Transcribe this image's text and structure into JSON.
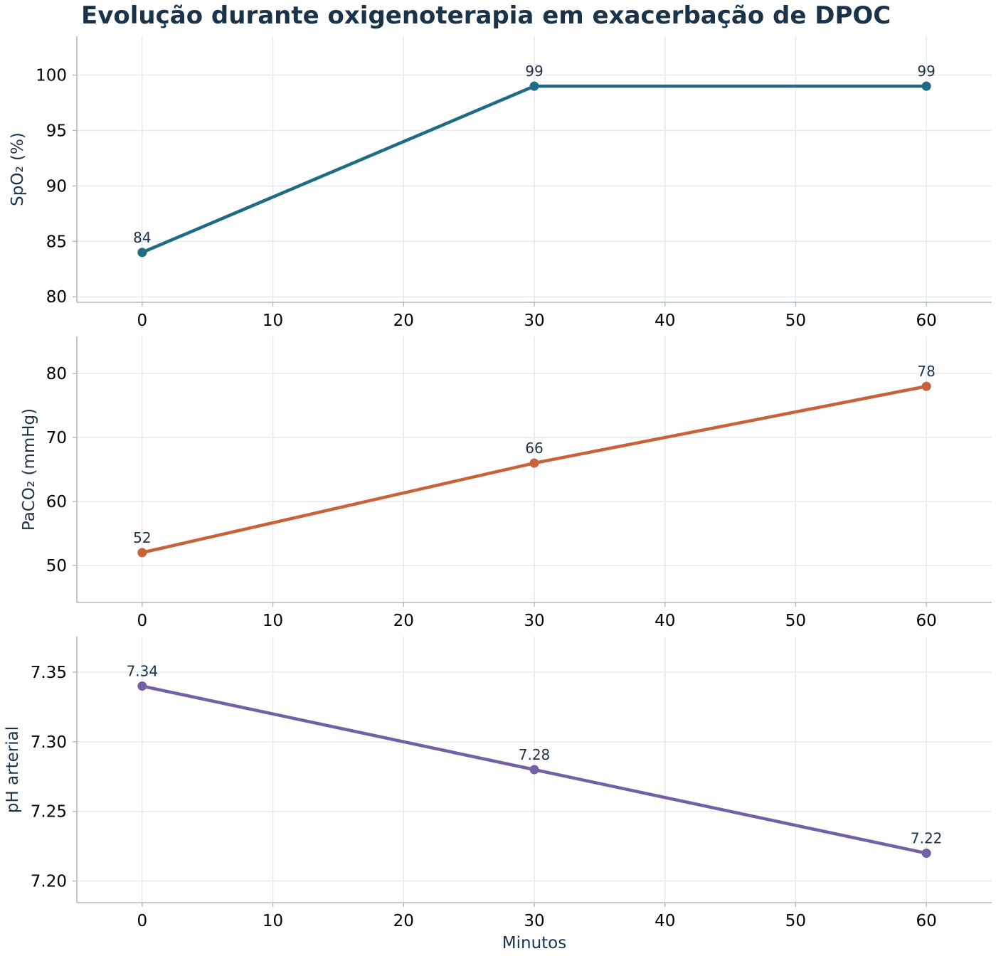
{
  "chart_data": {
    "type": "line",
    "title": "Evolução durante oxigenoterapia em exacerbação de DPOC",
    "xlabel": "Minutos",
    "x": [
      0,
      30,
      60
    ],
    "xlim": [
      -5,
      65
    ],
    "xticks": [
      0,
      10,
      20,
      30,
      40,
      50,
      60
    ],
    "grid": true,
    "legend": "none",
    "colors": {
      "title": "#1b3349",
      "axis_label": "#1b3349",
      "data_label": "#1b3349",
      "grid": "#e6e9ed",
      "spine": "#aebbc6"
    },
    "panels": [
      {
        "ylabel": "SpO₂ (%)",
        "values": [
          84,
          99,
          99
        ],
        "value_labels": [
          "84",
          "99",
          "99"
        ],
        "ylim": [
          79.5,
          103.5
        ],
        "yticks": [
          80,
          85,
          90,
          95,
          100
        ],
        "ytick_labels": [
          "80",
          "85",
          "90",
          "95",
          "100"
        ],
        "color": "#1d6b84"
      },
      {
        "ylabel": "PaCO₂ (mmHg)",
        "values": [
          52,
          66,
          78
        ],
        "value_labels": [
          "52",
          "66",
          "78"
        ],
        "ylim": [
          44.2,
          85.8
        ],
        "yticks": [
          50,
          60,
          70,
          80
        ],
        "ytick_labels": [
          "50",
          "60",
          "70",
          "80"
        ],
        "color": "#c7623a"
      },
      {
        "ylabel": "pH arterial",
        "values": [
          7.34,
          7.28,
          7.22
        ],
        "value_labels": [
          "7.34",
          "7.28",
          "7.22"
        ],
        "ylim": [
          7.1845,
          7.3755
        ],
        "yticks": [
          7.2,
          7.25,
          7.3,
          7.35
        ],
        "ytick_labels": [
          "7.20",
          "7.25",
          "7.30",
          "7.35"
        ],
        "color": "#7460a4"
      }
    ]
  }
}
